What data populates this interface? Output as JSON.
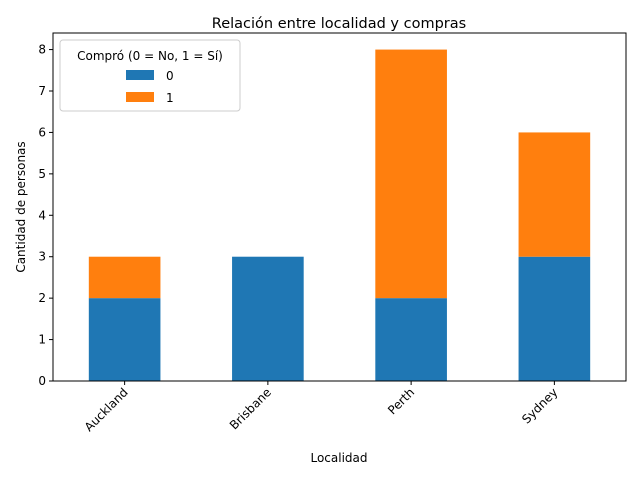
{
  "chart_data": {
    "type": "bar",
    "stacked": true,
    "title": "Relación entre localidad y compras",
    "xlabel": "Localidad",
    "ylabel": "Cantidad de personas",
    "categories": [
      "Auckland",
      "Brisbane",
      "Perth",
      "Sydney"
    ],
    "series": [
      {
        "name": "0",
        "values": [
          2,
          3,
          2,
          3
        ],
        "color": "#1f77b4"
      },
      {
        "name": "1",
        "values": [
          1,
          0,
          6,
          3
        ],
        "color": "#ff7f0e"
      }
    ],
    "ylim": [
      0,
      8.4
    ],
    "yticks": [
      0,
      1,
      2,
      3,
      4,
      5,
      6,
      7,
      8
    ],
    "legend": {
      "title": "Compró (0 = No, 1 = Sí)",
      "placement": "top-left"
    },
    "grid": false,
    "x_tick_rotation": 45
  }
}
